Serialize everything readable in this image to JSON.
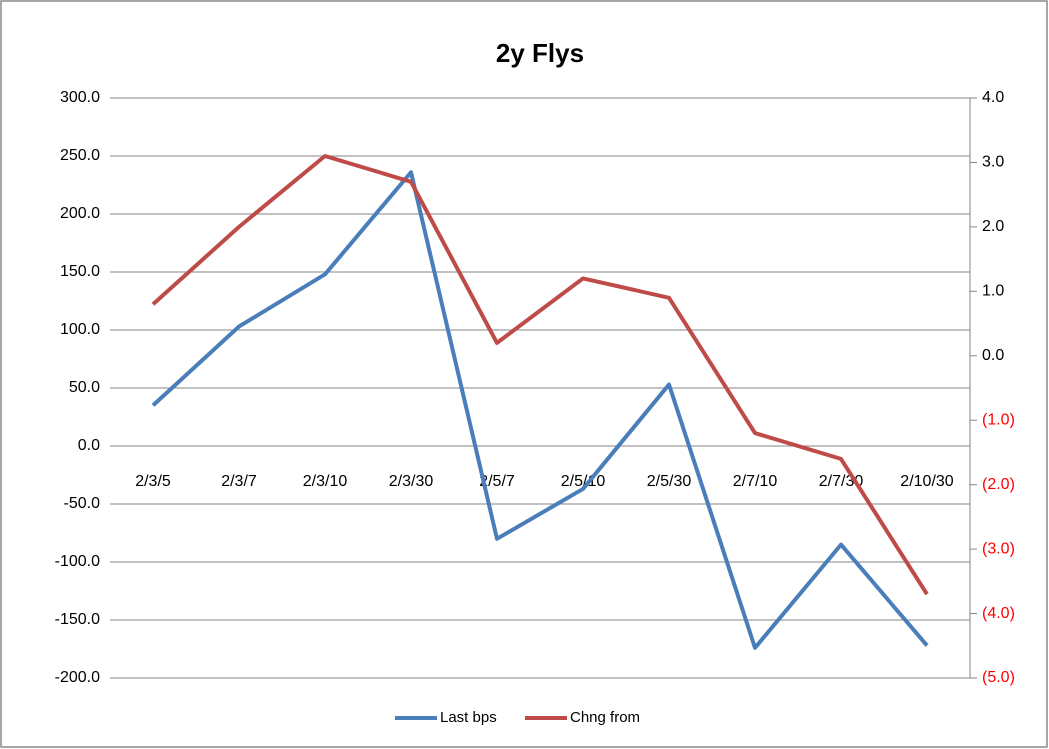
{
  "chart_data": {
    "type": "line",
    "title": "2y Flys",
    "categories": [
      "2/3/5",
      "2/3/7",
      "2/3/10",
      "2/3/30",
      "2/5/7",
      "2/5/10",
      "2/5/30",
      "2/7/10",
      "2/7/30",
      "2/10/30"
    ],
    "series": [
      {
        "name": "Last bps",
        "color": "#4a7ebb",
        "values": [
          35,
          103,
          148,
          236,
          -80,
          -37,
          53,
          -174,
          -85,
          -172
        ]
      },
      {
        "name": "Chng from",
        "color": "#be4b48",
        "axis": "y2",
        "values": [
          0.8,
          2.0,
          3.1,
          2.7,
          0.2,
          1.2,
          0.9,
          -1.2,
          -1.6,
          -3.7
        ]
      }
    ],
    "ylim": [
      -200,
      300
    ],
    "yticks": [
      {
        "value": 300,
        "label": "300.0"
      },
      {
        "value": 250,
        "label": "250.0"
      },
      {
        "value": 200,
        "label": "200.0"
      },
      {
        "value": 150,
        "label": "150.0"
      },
      {
        "value": 100,
        "label": "100.0"
      },
      {
        "value": 50,
        "label": "50.0"
      },
      {
        "value": 0,
        "label": "0.0"
      },
      {
        "value": -50,
        "label": "-50.0"
      },
      {
        "value": -100,
        "label": "-100.0"
      },
      {
        "value": -150,
        "label": "-150.0"
      },
      {
        "value": -200,
        "label": "-200.0"
      }
    ],
    "y2lim": [
      -5,
      4
    ],
    "y2ticks": [
      {
        "value": 4,
        "label": "4.0"
      },
      {
        "value": 3,
        "label": "3.0"
      },
      {
        "value": 2,
        "label": "2.0"
      },
      {
        "value": 1,
        "label": "1.0"
      },
      {
        "value": 0,
        "label": "0.0"
      },
      {
        "value": -1,
        "label": "(1.0)"
      },
      {
        "value": -2,
        "label": "(2.0)"
      },
      {
        "value": -3,
        "label": "(3.0)"
      },
      {
        "value": -4,
        "label": "(4.0)"
      },
      {
        "value": -5,
        "label": "(5.0)"
      }
    ],
    "y2_negative_color": "#ff0000",
    "grid": true,
    "legend": "bottom"
  }
}
